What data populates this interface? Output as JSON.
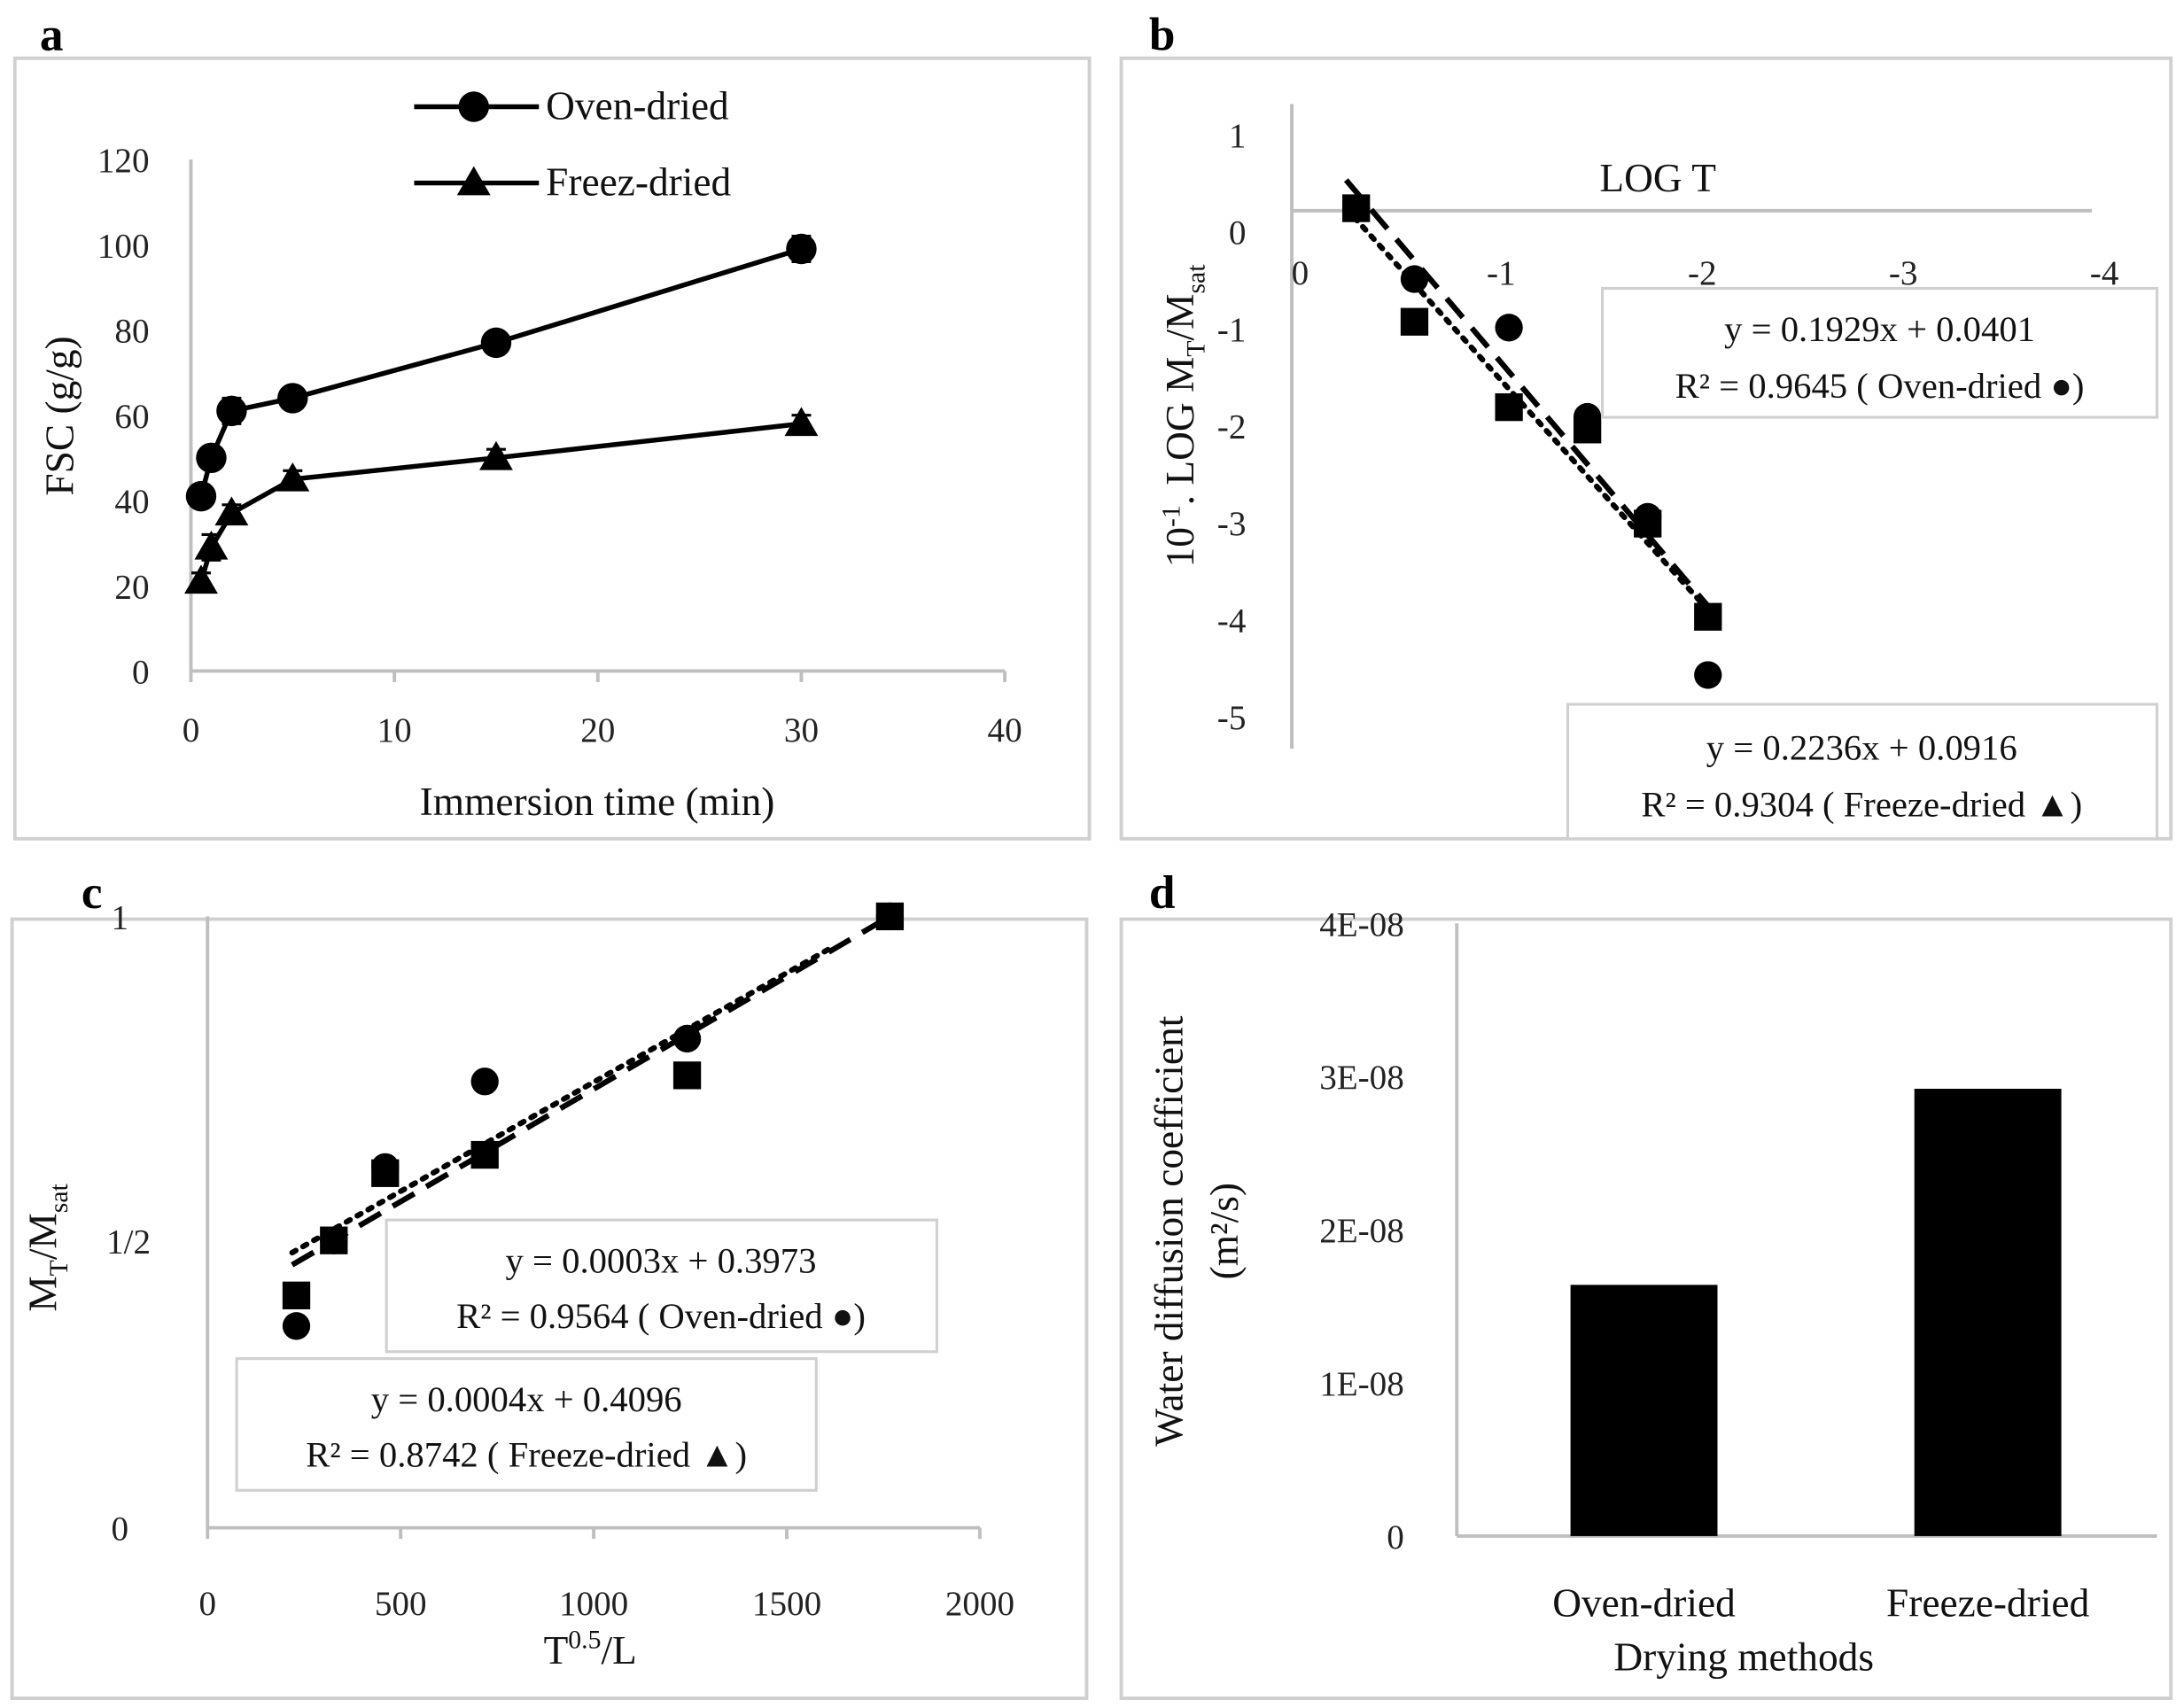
{
  "chart_data": [
    {
      "id": "a",
      "panel_label": "a",
      "type": "line",
      "xlabel": "Immersion time (min)",
      "ylabel": "FSC (g/g)",
      "xlim": [
        0,
        40
      ],
      "ylim": [
        0,
        120
      ],
      "xticks": [
        "0",
        "10",
        "20",
        "30",
        "40"
      ],
      "yticks": [
        "0",
        "20",
        "40",
        "60",
        "80",
        "100",
        "120"
      ],
      "legend_position": "top-center",
      "series": [
        {
          "name": "Oven-dried",
          "marker": "circle",
          "x": [
            0.5,
            1,
            2,
            5,
            15,
            30
          ],
          "y": [
            41,
            50,
            61,
            64,
            77,
            99
          ],
          "error": [
            2,
            2,
            3,
            2,
            2,
            3
          ]
        },
        {
          "name": "Freez-dried",
          "marker": "triangle",
          "x": [
            0.5,
            1,
            2,
            5,
            15,
            30
          ],
          "y": [
            21,
            29,
            37,
            45,
            50,
            58
          ],
          "error": [
            2,
            3,
            2,
            2,
            2,
            2
          ]
        }
      ]
    },
    {
      "id": "b",
      "panel_label": "b",
      "type": "scatter",
      "xlabel": "LOG T",
      "ylabel_parts": {
        "p1": "10",
        "sup": "-1",
        "p2": ". LOG M",
        "sub1": "T",
        "p3": "/M",
        "sub2": "sat"
      },
      "xlim": [
        0,
        -4
      ],
      "ylim": [
        -5,
        1
      ],
      "xticks": [
        "0",
        "-1",
        "-2",
        "-3",
        "-4"
      ],
      "yticks": [
        "1",
        "0",
        "-1",
        "-2",
        "-3",
        "-4",
        "-5"
      ],
      "series": [
        {
          "name": "Oven-dried",
          "marker": "circle",
          "x": [
            -0.32,
            -0.61,
            -1.08,
            -1.47,
            -1.77,
            -2.07
          ],
          "y": [
            0.24,
            -0.49,
            -0.99,
            -1.91,
            -2.94,
            -4.57
          ],
          "trend": {
            "style": "dashed",
            "x": [
              -0.27,
              -2.07
            ],
            "y": [
              0.53,
              -3.86
            ]
          },
          "equation": "y = 0.1929x + 0.0401",
          "r2": "R² = 0.9645  ( Oven-dried ●)"
        },
        {
          "name": "Freeze-dried",
          "marker": "square",
          "x": [
            -0.32,
            -0.61,
            -1.08,
            -1.47,
            -1.77,
            -2.07
          ],
          "y": [
            0.24,
            -0.93,
            -1.81,
            -2.04,
            -3.01,
            -3.97
          ],
          "trend": {
            "style": "dotted",
            "x": [
              -0.27,
              -2.07
            ],
            "y": [
              0.24,
              -3.9
            ]
          },
          "equation": "y = 0.2236x + 0.0916",
          "r2": "R² = 0.9304 ( Freeze-dried ▲)"
        }
      ]
    },
    {
      "id": "c",
      "panel_label": "c",
      "type": "scatter",
      "xlabel_parts": {
        "p1": "T",
        "sup": "0.5",
        "p2": "/L"
      },
      "ylabel_parts": {
        "p1": "M",
        "sub1": "T",
        "p2": "/M",
        "sub2": "sat"
      },
      "xlim": [
        0,
        2000
      ],
      "ylim": [
        0,
        1
      ],
      "xticks": [
        "0",
        "500",
        "1000",
        "1500",
        "2000"
      ],
      "yticks": [
        "0",
        "1/2",
        "1"
      ],
      "series": [
        {
          "name": "Oven-dried",
          "marker": "circle",
          "x": [
            230,
            327,
            460,
            718,
            1242,
            1767
          ],
          "y": [
            0.33,
            0.47,
            0.59,
            0.73,
            0.8,
            1.0
          ],
          "trend": {
            "style": "dotted",
            "x": [
              219,
              1619
            ],
            "y": [
              0.45,
              0.95
            ]
          },
          "equation": "y = 0.0003x + 0.3973",
          "r2": "R² = 0.9564 ( Oven-dried ●)"
        },
        {
          "name": "Freeze-dried",
          "marker": "square",
          "x": [
            230,
            327,
            460,
            718,
            1242,
            1767
          ],
          "y": [
            0.38,
            0.47,
            0.58,
            0.61,
            0.74,
            1.0
          ],
          "trend": {
            "style": "dashed",
            "x": [
              219,
              1767
            ],
            "y": [
              0.43,
              1.0
            ]
          },
          "equation": "y = 0.0004x + 0.4096",
          "r2": "R² = 0.8742 ( Freeze-dried ▲)"
        }
      ]
    },
    {
      "id": "d",
      "panel_label": "d",
      "type": "bar",
      "xlabel": "Drying methods",
      "ylabel": "Water diffusion coefficient",
      "ylabel2": "(m²/s)",
      "categories": [
        "Oven-dried",
        "Freeze-dried"
      ],
      "values": [
        1.64e-08,
        2.92e-08
      ],
      "ylim": [
        0,
        4e-08
      ],
      "yticks": [
        "0",
        "1E-08",
        "2E-08",
        "3E-08",
        "4E-08"
      ],
      "bar_color": "#000000"
    }
  ]
}
